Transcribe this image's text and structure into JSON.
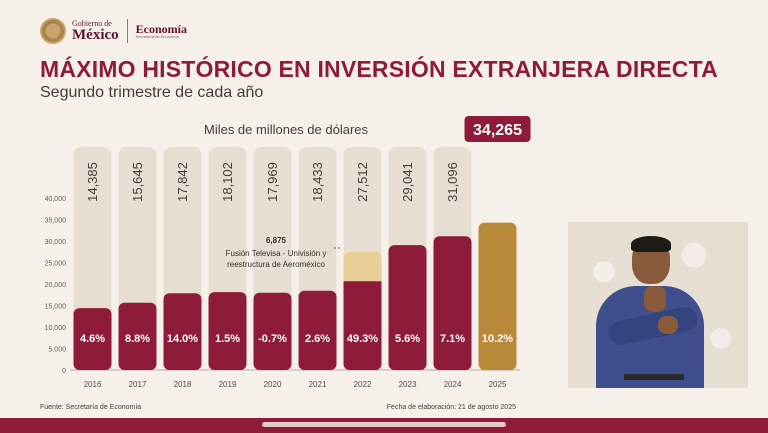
{
  "header": {
    "gov_small": "Gobierno de",
    "gov_big": "México",
    "dep_big": "Economía",
    "dep_small": "Secretaría de Economía"
  },
  "title": "MÁXIMO HISTÓRICO EN INVERSIÓN EXTRANJERA DIRECTA",
  "subtitle": "Segundo trimestre de cada año",
  "footer": {
    "source": "Fuente: Secretaría de Economía",
    "date": "Fecha de elaboración: 21 de agosto 2025"
  },
  "colors": {
    "bar": "#8e1b3a",
    "highlight": "#b8893a",
    "extra": "#e9cf97",
    "track": "#e6ded3",
    "text": "#4a3a36"
  },
  "chart_data": {
    "type": "bar",
    "title": "Miles de millones de dólares",
    "categories": [
      "2016",
      "2017",
      "2018",
      "2019",
      "2020",
      "2021",
      "2022",
      "2023",
      "2024",
      "2025"
    ],
    "values": [
      14385,
      15645,
      17842,
      18102,
      17969,
      18433,
      27512,
      29041,
      31096,
      34265
    ],
    "value_labels": [
      "14,385",
      "15,645",
      "17,842",
      "18,102",
      "17,969",
      "18,433",
      "27,512",
      "29,041",
      "31,096",
      "34,265"
    ],
    "growth": [
      "4.6%",
      "8.8%",
      "14.0%",
      "1.5%",
      "-0.7%",
      "2.6%",
      "49.3%",
      "5.6%",
      "7.1%",
      "10.2%"
    ],
    "highlight_category": "2025",
    "stacked_extra": {
      "category": "2022",
      "value": 6875,
      "label": "6,875",
      "note": "Fusión Televisa - Univisión y reestructura de Aeroméxico"
    },
    "ylim": [
      0,
      40000
    ],
    "yticks": [
      0,
      5000,
      10000,
      15000,
      20000,
      25000,
      30000,
      35000,
      40000
    ],
    "ytick_labels": [
      "0",
      "5,000",
      "10,000",
      "15,000",
      "20,000",
      "25,000",
      "30,000",
      "35,000",
      "40,000"
    ],
    "grid": false,
    "legend": "none"
  }
}
